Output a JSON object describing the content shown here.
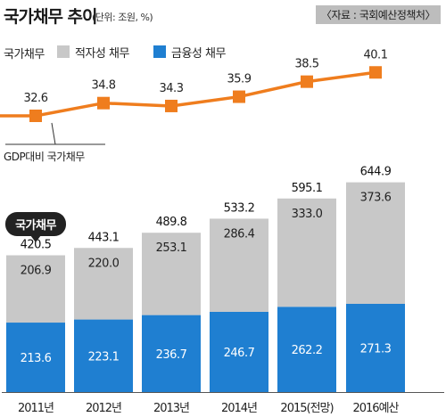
{
  "header": {
    "title": "국가채무 추이",
    "unit": "(단위: 조원, %)",
    "source": "자료 : 국회예산정책처"
  },
  "legend": {
    "label": "국가채무",
    "items": [
      {
        "name": "적자성 채무",
        "color": "#c8c8c8"
      },
      {
        "name": "금융성 채무",
        "color": "#1f7fd1"
      }
    ]
  },
  "callout": "국가채무",
  "line_label": "GDP대비 국가채무",
  "colors": {
    "accent": "#ef7d1e",
    "deficit": "#c8c8c8",
    "financial": "#1f7fd1"
  },
  "chart_data": {
    "type": "bar",
    "stacked": true,
    "categories": [
      "2011년",
      "2012년",
      "2013년",
      "2014년",
      "2015(전망)",
      "2016예산"
    ],
    "series": [
      {
        "name": "금융성 채무",
        "values": [
          213.6,
          223.1,
          236.7,
          246.7,
          262.2,
          271.3
        ],
        "labels": [
          "213.6",
          "223.1",
          "236.7",
          "246.7",
          "262.2",
          "271.3"
        ]
      },
      {
        "name": "적자성 채무",
        "values": [
          206.9,
          220.0,
          253.1,
          286.4,
          333.0,
          373.6
        ],
        "labels": [
          "206.9",
          "220.0",
          "253.1",
          "286.4",
          "333.0",
          "373.6"
        ]
      }
    ],
    "totals": [
      420.5,
      443.1,
      489.8,
      533.2,
      595.1,
      644.9
    ],
    "total_labels": [
      "420.5",
      "443.1",
      "489.8",
      "533.2",
      "595.1",
      "644.9"
    ],
    "line": {
      "name": "GDP대비 국가채무",
      "values": [
        32.6,
        34.8,
        34.3,
        35.9,
        38.5,
        40.1
      ],
      "labels": [
        "32.6",
        "34.8",
        "34.3",
        "35.9",
        "38.5",
        "40.1"
      ]
    }
  }
}
